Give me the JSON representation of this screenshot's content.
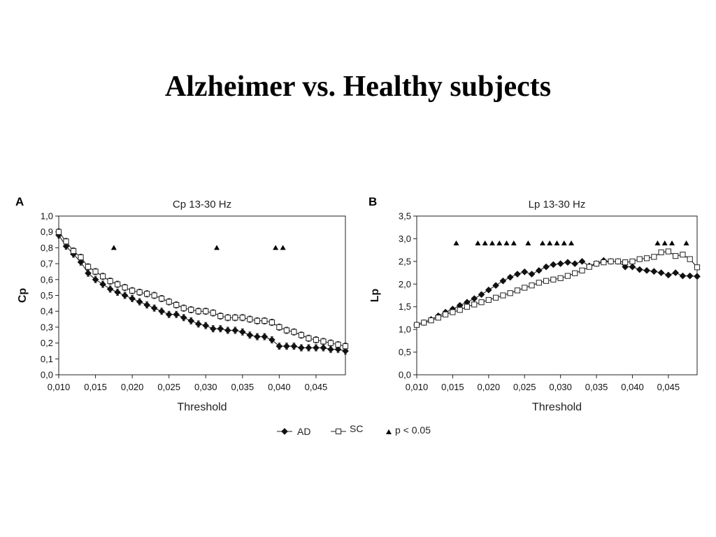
{
  "slide": {
    "title": "Alzheimer vs. Healthy subjects"
  },
  "legend": {
    "series_a": "AD",
    "series_b": "SC",
    "significance": "p < 0.05"
  },
  "chart_data": [
    {
      "panel": "A",
      "type": "line",
      "title": "Cp 13-30 Hz",
      "xlabel": "Threshold",
      "ylabel": "Cp",
      "xlim": [
        0.01,
        0.049
      ],
      "ylim": [
        0.0,
        1.0
      ],
      "x_ticks": [
        0.01,
        0.015,
        0.02,
        0.025,
        0.03,
        0.035,
        0.04,
        0.045
      ],
      "x_tick_labels": [
        "0,010",
        "0,015",
        "0,020",
        "0,025",
        "0,030",
        "0,035",
        "0,040",
        "0,045"
      ],
      "y_ticks": [
        0.0,
        0.1,
        0.2,
        0.3,
        0.4,
        0.5,
        0.6,
        0.7,
        0.8,
        0.9,
        1.0
      ],
      "y_tick_labels": [
        "0,0",
        "0,1",
        "0,2",
        "0,3",
        "0,4",
        "0,5",
        "0,6",
        "0,7",
        "0,8",
        "0,9",
        "1,0"
      ],
      "grid": false,
      "legend_position": "bottom-center",
      "x": [
        0.01,
        0.011,
        0.012,
        0.013,
        0.014,
        0.015,
        0.016,
        0.017,
        0.018,
        0.019,
        0.02,
        0.021,
        0.022,
        0.023,
        0.024,
        0.025,
        0.026,
        0.027,
        0.028,
        0.029,
        0.03,
        0.031,
        0.032,
        0.033,
        0.034,
        0.035,
        0.036,
        0.037,
        0.038,
        0.039,
        0.04,
        0.041,
        0.042,
        0.043,
        0.044,
        0.045,
        0.046,
        0.047,
        0.048,
        0.049
      ],
      "series": [
        {
          "name": "AD",
          "marker": "filled-diamond",
          "color": "#111111",
          "values": [
            0.88,
            0.81,
            0.76,
            0.71,
            0.64,
            0.6,
            0.57,
            0.54,
            0.52,
            0.5,
            0.48,
            0.46,
            0.44,
            0.42,
            0.4,
            0.38,
            0.38,
            0.36,
            0.34,
            0.32,
            0.31,
            0.29,
            0.29,
            0.28,
            0.28,
            0.27,
            0.25,
            0.24,
            0.24,
            0.22,
            0.18,
            0.18,
            0.18,
            0.17,
            0.17,
            0.17,
            0.17,
            0.16,
            0.16,
            0.15
          ],
          "errors": [
            0.02,
            0.02,
            0.02,
            0.02,
            0.02,
            0.02,
            0.02,
            0.02,
            0.02,
            0.02,
            0.02,
            0.02,
            0.02,
            0.02,
            0.02,
            0.02,
            0.02,
            0.02,
            0.02,
            0.02,
            0.02,
            0.02,
            0.02,
            0.02,
            0.02,
            0.02,
            0.02,
            0.02,
            0.02,
            0.02,
            0.02,
            0.02,
            0.02,
            0.02,
            0.02,
            0.02,
            0.02,
            0.02,
            0.02,
            0.02
          ]
        },
        {
          "name": "SC",
          "marker": "open-square",
          "color": "#111111",
          "values": [
            0.9,
            0.84,
            0.78,
            0.74,
            0.68,
            0.65,
            0.62,
            0.59,
            0.57,
            0.55,
            0.53,
            0.52,
            0.51,
            0.5,
            0.48,
            0.46,
            0.44,
            0.42,
            0.41,
            0.4,
            0.4,
            0.39,
            0.37,
            0.36,
            0.36,
            0.36,
            0.35,
            0.34,
            0.34,
            0.33,
            0.3,
            0.28,
            0.27,
            0.25,
            0.23,
            0.22,
            0.21,
            0.2,
            0.19,
            0.18
          ],
          "errors": [
            0.02,
            0.02,
            0.02,
            0.02,
            0.02,
            0.02,
            0.02,
            0.02,
            0.02,
            0.02,
            0.02,
            0.02,
            0.02,
            0.02,
            0.02,
            0.02,
            0.02,
            0.02,
            0.02,
            0.02,
            0.02,
            0.02,
            0.02,
            0.02,
            0.02,
            0.02,
            0.02,
            0.02,
            0.02,
            0.02,
            0.02,
            0.02,
            0.02,
            0.02,
            0.02,
            0.02,
            0.02,
            0.02,
            0.02,
            0.02
          ]
        }
      ],
      "significance": {
        "marker": "filled-triangle",
        "y": 0.8,
        "x": [
          0.0175,
          0.0315,
          0.0395,
          0.0405
        ]
      }
    },
    {
      "panel": "B",
      "type": "line",
      "title": "Lp 13-30 Hz",
      "xlabel": "Threshold",
      "ylabel": "Lp",
      "xlim": [
        0.01,
        0.049
      ],
      "ylim": [
        0.0,
        3.5
      ],
      "x_ticks": [
        0.01,
        0.015,
        0.02,
        0.025,
        0.03,
        0.035,
        0.04,
        0.045
      ],
      "x_tick_labels": [
        "0,010",
        "0,015",
        "0,020",
        "0,025",
        "0,030",
        "0,035",
        "0,040",
        "0,045"
      ],
      "y_ticks": [
        0.0,
        0.5,
        1.0,
        1.5,
        2.0,
        2.5,
        3.0,
        3.5
      ],
      "y_tick_labels": [
        "0,0",
        "0,5",
        "1,0",
        "1,5",
        "2,0",
        "2,5",
        "3,0",
        "3,5"
      ],
      "grid": false,
      "legend_position": "bottom-center",
      "x": [
        0.01,
        0.011,
        0.012,
        0.013,
        0.014,
        0.015,
        0.016,
        0.017,
        0.018,
        0.019,
        0.02,
        0.021,
        0.022,
        0.023,
        0.024,
        0.025,
        0.026,
        0.027,
        0.028,
        0.029,
        0.03,
        0.031,
        0.032,
        0.033,
        0.034,
        0.035,
        0.036,
        0.037,
        0.038,
        0.039,
        0.04,
        0.041,
        0.042,
        0.043,
        0.044,
        0.045,
        0.046,
        0.047,
        0.048,
        0.049
      ],
      "series": [
        {
          "name": "AD",
          "marker": "filled-diamond",
          "color": "#111111",
          "values": [
            1.1,
            1.15,
            1.22,
            1.3,
            1.38,
            1.45,
            1.53,
            1.6,
            1.68,
            1.77,
            1.87,
            1.97,
            2.07,
            2.15,
            2.22,
            2.27,
            2.22,
            2.3,
            2.38,
            2.43,
            2.45,
            2.48,
            2.45,
            2.5,
            2.4,
            2.45,
            2.52,
            2.5,
            2.5,
            2.38,
            2.38,
            2.32,
            2.3,
            2.28,
            2.25,
            2.2,
            2.25,
            2.18,
            2.18,
            2.17
          ],
          "errors": [
            0.04,
            0.04,
            0.04,
            0.04,
            0.04,
            0.04,
            0.04,
            0.04,
            0.04,
            0.04,
            0.04,
            0.04,
            0.04,
            0.04,
            0.04,
            0.04,
            0.04,
            0.04,
            0.04,
            0.04,
            0.04,
            0.04,
            0.04,
            0.04,
            0.04,
            0.04,
            0.04,
            0.04,
            0.04,
            0.04,
            0.04,
            0.04,
            0.04,
            0.04,
            0.04,
            0.04,
            0.04,
            0.04,
            0.04,
            0.04
          ]
        },
        {
          "name": "SC",
          "marker": "open-square",
          "color": "#111111",
          "values": [
            1.1,
            1.15,
            1.2,
            1.26,
            1.33,
            1.38,
            1.43,
            1.5,
            1.55,
            1.6,
            1.65,
            1.7,
            1.75,
            1.8,
            1.86,
            1.92,
            1.97,
            2.03,
            2.07,
            2.1,
            2.13,
            2.18,
            2.24,
            2.3,
            2.38,
            2.45,
            2.48,
            2.5,
            2.5,
            2.48,
            2.5,
            2.55,
            2.57,
            2.6,
            2.7,
            2.72,
            2.62,
            2.65,
            2.55,
            2.37
          ],
          "errors": [
            0.04,
            0.04,
            0.04,
            0.04,
            0.04,
            0.04,
            0.04,
            0.04,
            0.04,
            0.04,
            0.04,
            0.04,
            0.04,
            0.04,
            0.04,
            0.04,
            0.04,
            0.04,
            0.04,
            0.04,
            0.04,
            0.04,
            0.04,
            0.04,
            0.04,
            0.04,
            0.04,
            0.04,
            0.04,
            0.04,
            0.04,
            0.04,
            0.04,
            0.04,
            0.04,
            0.04,
            0.04,
            0.04,
            0.04,
            0.04
          ]
        }
      ],
      "significance": {
        "marker": "filled-triangle",
        "y": 2.9,
        "x": [
          0.0155,
          0.0185,
          0.0195,
          0.0205,
          0.0215,
          0.0225,
          0.0235,
          0.0255,
          0.0275,
          0.0285,
          0.0295,
          0.0305,
          0.0315,
          0.0435,
          0.0445,
          0.0455,
          0.0475
        ]
      }
    }
  ]
}
